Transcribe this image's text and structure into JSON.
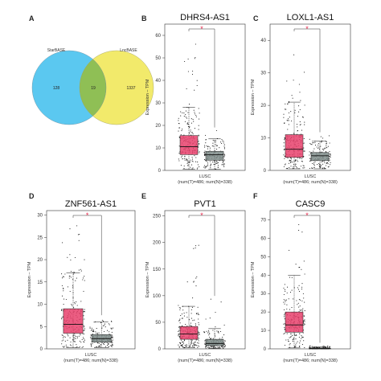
{
  "venn": {
    "letter": "A",
    "left_label": "StarBASE",
    "right_label": "LncBASE",
    "left_only": "128",
    "overlap": "19",
    "right_only": "1337",
    "left_color": "#5bc8f0",
    "right_color": "#f2ea6b",
    "overlap_color": "#8fbf55"
  },
  "chart_data": [
    {
      "type": "box",
      "letter": "B",
      "title": "DHRS4-AS1",
      "ylabel": "Expression – TPM",
      "xlabel_line1": "LUSC",
      "xlabel_line2": "(num(T)=486; num(N)=338)",
      "ylim": [
        0,
        65
      ],
      "yticks": [
        0,
        10,
        20,
        30,
        40,
        50,
        60
      ],
      "significance": "*",
      "series": [
        {
          "name": "T",
          "color": "#e8416c",
          "q1": 7,
          "median": 10.5,
          "q3": 15.5,
          "whisker_low": 0.5,
          "whisker_high": 28,
          "outlier_max": 63
        },
        {
          "name": "N",
          "color": "#7f8c8a",
          "q1": 4.5,
          "median": 7,
          "q3": 8.5,
          "whisker_low": 0.5,
          "whisker_high": 14,
          "outlier_max": 18
        }
      ]
    },
    {
      "type": "box",
      "letter": "C",
      "title": "LOXL1-AS1",
      "ylabel": "Expression – TPM",
      "xlabel_line1": "LUSC",
      "xlabel_line2": "(num(T)=486; num(N)=338)",
      "ylim": [
        0,
        45
      ],
      "yticks": [
        0,
        10,
        20,
        30,
        40
      ],
      "significance": "*",
      "series": [
        {
          "name": "T",
          "color": "#e8416c",
          "q1": 4,
          "median": 6.5,
          "q3": 11,
          "whisker_low": 0.5,
          "whisker_high": 21,
          "outlier_max": 38
        },
        {
          "name": "N",
          "color": "#7f8c8a",
          "q1": 3,
          "median": 4.5,
          "q3": 5.5,
          "whisker_low": 0.5,
          "whisker_high": 9,
          "outlier_max": 11
        }
      ]
    },
    {
      "type": "box",
      "letter": "D",
      "title": "ZNF561-AS1",
      "ylabel": "Expression – TPM",
      "xlabel_line1": "LUSC",
      "xlabel_line2": "(num(T)=486; num(N)=338)",
      "ylim": [
        0,
        31
      ],
      "yticks": [
        0,
        5,
        10,
        15,
        20,
        25,
        30
      ],
      "significance": "*",
      "series": [
        {
          "name": "T",
          "color": "#e8416c",
          "q1": 3.5,
          "median": 5.5,
          "q3": 9,
          "whisker_low": 0.3,
          "whisker_high": 17,
          "outlier_max": 29
        },
        {
          "name": "N",
          "color": "#7f8c8a",
          "q1": 1.5,
          "median": 2.3,
          "q3": 3.2,
          "whisker_low": 0.3,
          "whisker_high": 6,
          "outlier_max": 7
        }
      ]
    },
    {
      "type": "box",
      "letter": "E",
      "title": "PVT1",
      "ylabel": "Expression – TPM",
      "xlabel_line1": "LUSC",
      "xlabel_line2": "(num(T)=486; num(N)=338)",
      "ylim": [
        0,
        260
      ],
      "yticks": [
        0,
        50,
        100,
        150,
        200,
        250
      ],
      "significance": "*",
      "series": [
        {
          "name": "T",
          "color": "#e8416c",
          "q1": 18,
          "median": 28,
          "q3": 42,
          "whisker_low": 2,
          "whisker_high": 80,
          "outlier_max": 245
        },
        {
          "name": "N",
          "color": "#7f8c8a",
          "q1": 6,
          "median": 10,
          "q3": 18,
          "whisker_low": 1,
          "whisker_high": 38,
          "outlier_max": 95
        }
      ]
    },
    {
      "type": "box",
      "letter": "F",
      "title": "CASC9",
      "ylabel": "Expression – TPM",
      "xlabel_line1": "LUSC",
      "xlabel_line2": "(num(T)=486; num(N)=338)",
      "ylim": [
        0,
        75
      ],
      "yticks": [
        0,
        10,
        20,
        30,
        40,
        50,
        60,
        70
      ],
      "significance": "*",
      "series": [
        {
          "name": "T",
          "color": "#e8416c",
          "q1": 9,
          "median": 13,
          "q3": 20,
          "whisker_low": 0.5,
          "whisker_high": 40,
          "outlier_max": 70
        },
        {
          "name": "N",
          "color": "#7f8c8a",
          "q1": 0,
          "median": 0.2,
          "q3": 0.5,
          "whisker_low": 0,
          "whisker_high": 1,
          "outlier_max": 2
        }
      ]
    }
  ]
}
